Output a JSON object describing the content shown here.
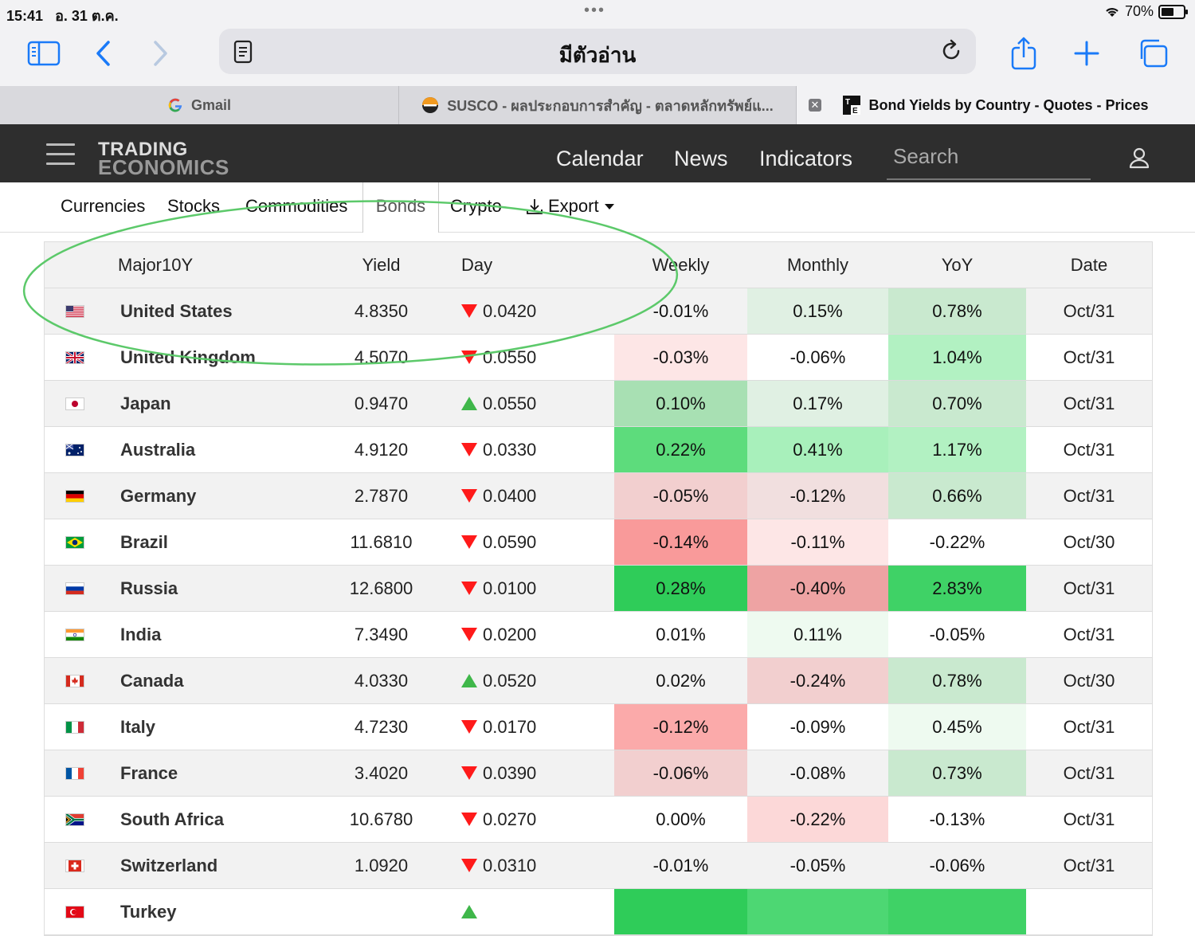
{
  "status_bar": {
    "time": "15:41",
    "date": "อ. 31 ต.ค.",
    "battery": "70%",
    "battery_level": 0.7
  },
  "address_bar": {
    "title": "มีตัวอ่าน"
  },
  "tabs": [
    {
      "label": "Gmail",
      "icon": "google-g-icon",
      "active": false
    },
    {
      "label": "SUSCO - ผลประกอบการสำคัญ - ตลาดหลักทรัพย์แ...",
      "icon": "susco-favicon-icon",
      "active": false
    },
    {
      "label": "Bond Yields by Country - Quotes - Prices",
      "icon": "te-favicon-icon",
      "active": true
    }
  ],
  "site": {
    "logo_line1": "TRADING",
    "logo_line2": "ECONOMICS",
    "nav": [
      "Calendar",
      "News",
      "Indicators"
    ],
    "search_placeholder": "Search"
  },
  "subnav": {
    "links": [
      "Currencies",
      "Stocks",
      "Commodities",
      "Bonds",
      "Crypto"
    ],
    "active": "Bonds",
    "export": "Export"
  },
  "table": {
    "headers": {
      "name": "Major10Y",
      "yield": "Yield",
      "day": "Day",
      "weekly": "Weekly",
      "monthly": "Monthly",
      "yoy": "YoY",
      "date": "Date"
    },
    "rows": [
      {
        "flag": "us",
        "name": "United States",
        "yield": "4.8350",
        "dir": "down",
        "day": "0.0420",
        "weekly": "-0.01%",
        "monthly": "0.15%",
        "yoy": "0.78%",
        "date": "Oct/31",
        "wbg": "",
        "mbg": "#e0f0e3",
        "ybg": "#c9e9cf"
      },
      {
        "flag": "gb",
        "name": "United Kingdom",
        "yield": "4.5070",
        "dir": "down",
        "day": "0.0550",
        "weekly": "-0.03%",
        "monthly": "-0.06%",
        "yoy": "1.04%",
        "date": "Oct/31",
        "wbg": "#fde6e6",
        "mbg": "",
        "ybg": "#b2f1c2"
      },
      {
        "flag": "jp",
        "name": "Japan",
        "yield": "0.9470",
        "dir": "up",
        "day": "0.0550",
        "weekly": "0.10%",
        "monthly": "0.17%",
        "yoy": "0.70%",
        "date": "Oct/31",
        "wbg": "#a8e0b3",
        "mbg": "#e0f0e3",
        "ybg": "#c9e9cf"
      },
      {
        "flag": "au",
        "name": "Australia",
        "yield": "4.9120",
        "dir": "down",
        "day": "0.0330",
        "weekly": "0.22%",
        "monthly": "0.41%",
        "yoy": "1.17%",
        "date": "Oct/31",
        "wbg": "#5ddc7c",
        "mbg": "#a8f0bb",
        "ybg": "#b2f1c2"
      },
      {
        "flag": "de",
        "name": "Germany",
        "yield": "2.7870",
        "dir": "down",
        "day": "0.0400",
        "weekly": "-0.05%",
        "monthly": "-0.12%",
        "yoy": "0.66%",
        "date": "Oct/31",
        "wbg": "#f2cfcf",
        "mbg": "#f1dfdf",
        "ybg": "#c9e9cf"
      },
      {
        "flag": "br",
        "name": "Brazil",
        "yield": "11.6810",
        "dir": "down",
        "day": "0.0590",
        "weekly": "-0.14%",
        "monthly": "-0.11%",
        "yoy": "-0.22%",
        "date": "Oct/30",
        "wbg": "#f99a9a",
        "mbg": "#fde6e6",
        "ybg": ""
      },
      {
        "flag": "ru",
        "name": "Russia",
        "yield": "12.6800",
        "dir": "down",
        "day": "0.0100",
        "weekly": "0.28%",
        "monthly": "-0.40%",
        "yoy": "2.83%",
        "date": "Oct/31",
        "wbg": "#2fcc59",
        "mbg": "#eea3a3",
        "ybg": "#3fd266"
      },
      {
        "flag": "in",
        "name": "India",
        "yield": "7.3490",
        "dir": "down",
        "day": "0.0200",
        "weekly": "0.01%",
        "monthly": "0.11%",
        "yoy": "-0.05%",
        "date": "Oct/31",
        "wbg": "",
        "mbg": "#eefaf0",
        "ybg": ""
      },
      {
        "flag": "ca",
        "name": "Canada",
        "yield": "4.0330",
        "dir": "up",
        "day": "0.0520",
        "weekly": "0.02%",
        "monthly": "-0.24%",
        "yoy": "0.78%",
        "date": "Oct/30",
        "wbg": "",
        "mbg": "#f2cfcf",
        "ybg": "#c9e9cf"
      },
      {
        "flag": "it",
        "name": "Italy",
        "yield": "4.7230",
        "dir": "down",
        "day": "0.0170",
        "weekly": "-0.12%",
        "monthly": "-0.09%",
        "yoy": "0.45%",
        "date": "Oct/31",
        "wbg": "#fbaaaa",
        "mbg": "",
        "ybg": "#eefaf0"
      },
      {
        "flag": "fr",
        "name": "France",
        "yield": "3.4020",
        "dir": "down",
        "day": "0.0390",
        "weekly": "-0.06%",
        "monthly": "-0.08%",
        "yoy": "0.73%",
        "date": "Oct/31",
        "wbg": "#f2cfcf",
        "mbg": "",
        "ybg": "#c9e9cf"
      },
      {
        "flag": "za",
        "name": "South Africa",
        "yield": "10.6780",
        "dir": "down",
        "day": "0.0270",
        "weekly": "0.00%",
        "monthly": "-0.22%",
        "yoy": "-0.13%",
        "date": "Oct/31",
        "wbg": "",
        "mbg": "#fcd8d8",
        "ybg": ""
      },
      {
        "flag": "ch",
        "name": "Switzerland",
        "yield": "1.0920",
        "dir": "down",
        "day": "0.0310",
        "weekly": "-0.01%",
        "monthly": "-0.05%",
        "yoy": "-0.06%",
        "date": "Oct/31",
        "wbg": "",
        "mbg": "",
        "ybg": ""
      },
      {
        "flag": "tr",
        "name": "Turkey",
        "yield": "",
        "dir": "up",
        "day": "",
        "weekly": "",
        "monthly": "",
        "yoy": "",
        "date": "",
        "wbg": "#2fcc59",
        "mbg": "#4dd773",
        "ybg": "#3fd266"
      }
    ]
  },
  "colors": {
    "accent": "#1a7af8",
    "annotation": "#5cc96a",
    "header_bg": "#2e2e2e",
    "down": "#ff1a1a",
    "up": "#3fb74a"
  }
}
